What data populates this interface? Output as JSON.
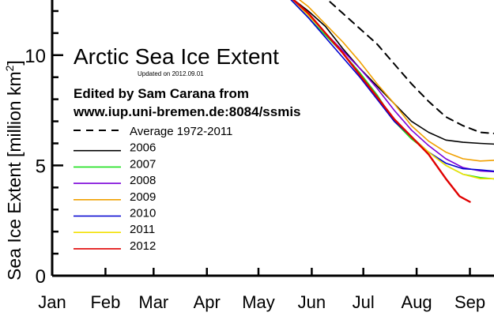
{
  "chart_data": {
    "type": "line",
    "title": "Arctic Sea Ice Extent",
    "updated": "Updated on 2012.09.01",
    "credit_line1": "Edited by Sam Carana from",
    "credit_line2": "www.iup.uni-bremen.de:8084/ssmis",
    "ylabel": "Sea Ice Extent [million km",
    "ylabel_sup": "2",
    "ylabel_close": "]",
    "xlabel": "",
    "months": [
      "Jan",
      "Feb",
      "Mar",
      "Apr",
      "May",
      "Jun",
      "Jul",
      "Aug",
      "Sep"
    ],
    "month_days": [
      1,
      32,
      60,
      91,
      121,
      152,
      182,
      213,
      244
    ],
    "y_ticks": [
      0,
      5,
      10
    ],
    "x_unit": "day of year",
    "xlim": [
      1,
      263
    ],
    "ylim": [
      0,
      12.5
    ],
    "grid": false,
    "legend_position": "left",
    "series": [
      {
        "name": "Average 1972-2011",
        "color": "#000000",
        "dashed": true,
        "points": [
          [
            150,
            13.0
          ],
          [
            160,
            12.6
          ],
          [
            170,
            11.9
          ],
          [
            180,
            11.2
          ],
          [
            190,
            10.5
          ],
          [
            200,
            9.6
          ],
          [
            210,
            8.7
          ],
          [
            220,
            7.9
          ],
          [
            230,
            7.2
          ],
          [
            240,
            6.8
          ],
          [
            250,
            6.5
          ],
          [
            258,
            6.45
          ],
          [
            263,
            6.5
          ]
        ]
      },
      {
        "name": "2006",
        "color": "#000000",
        "dashed": false,
        "points": [
          [
            140,
            12.6
          ],
          [
            150,
            12.0
          ],
          [
            160,
            11.3
          ],
          [
            170,
            10.3
          ],
          [
            180,
            9.4
          ],
          [
            190,
            8.6
          ],
          [
            200,
            7.8
          ],
          [
            210,
            7.0
          ],
          [
            220,
            6.5
          ],
          [
            230,
            6.15
          ],
          [
            240,
            6.05
          ],
          [
            250,
            6.0
          ],
          [
            263,
            5.95
          ]
        ]
      },
      {
        "name": "2007",
        "color": "#1ee01e",
        "dashed": false,
        "points": [
          [
            140,
            12.5
          ],
          [
            150,
            11.7
          ],
          [
            160,
            10.9
          ],
          [
            170,
            10.1
          ],
          [
            180,
            9.2
          ],
          [
            190,
            8.2
          ],
          [
            200,
            7.0
          ],
          [
            210,
            6.2
          ],
          [
            220,
            5.6
          ],
          [
            230,
            5.0
          ],
          [
            240,
            4.6
          ],
          [
            250,
            4.45
          ],
          [
            263,
            4.35
          ]
        ]
      },
      {
        "name": "2008",
        "color": "#7a00d8",
        "dashed": false,
        "points": [
          [
            140,
            12.6
          ],
          [
            150,
            11.8
          ],
          [
            160,
            11.0
          ],
          [
            170,
            10.2
          ],
          [
            180,
            9.4
          ],
          [
            190,
            8.5
          ],
          [
            200,
            7.5
          ],
          [
            210,
            6.6
          ],
          [
            220,
            5.9
          ],
          [
            230,
            5.3
          ],
          [
            240,
            4.9
          ],
          [
            250,
            4.75
          ],
          [
            263,
            4.7
          ]
        ]
      },
      {
        "name": "2009",
        "color": "#f0a000",
        "dashed": false,
        "points": [
          [
            140,
            12.8
          ],
          [
            150,
            12.2
          ],
          [
            160,
            11.4
          ],
          [
            170,
            10.6
          ],
          [
            180,
            9.7
          ],
          [
            190,
            8.7
          ],
          [
            200,
            7.8
          ],
          [
            210,
            6.8
          ],
          [
            220,
            6.1
          ],
          [
            230,
            5.6
          ],
          [
            240,
            5.3
          ],
          [
            250,
            5.2
          ],
          [
            263,
            5.25
          ]
        ]
      },
      {
        "name": "2010",
        "color": "#0000d0",
        "dashed": false,
        "points": [
          [
            140,
            12.5
          ],
          [
            150,
            11.7
          ],
          [
            160,
            10.8
          ],
          [
            170,
            9.9
          ],
          [
            180,
            9.0
          ],
          [
            190,
            8.0
          ],
          [
            200,
            7.0
          ],
          [
            210,
            6.3
          ],
          [
            220,
            5.6
          ],
          [
            230,
            5.1
          ],
          [
            240,
            4.85
          ],
          [
            250,
            4.8
          ],
          [
            263,
            4.7
          ]
        ]
      },
      {
        "name": "2011",
        "color": "#f2e000",
        "dashed": false,
        "points": [
          [
            140,
            12.6
          ],
          [
            150,
            11.8
          ],
          [
            160,
            11.0
          ],
          [
            170,
            10.1
          ],
          [
            180,
            9.1
          ],
          [
            190,
            8.1
          ],
          [
            200,
            7.1
          ],
          [
            210,
            6.3
          ],
          [
            220,
            5.6
          ],
          [
            230,
            5.0
          ],
          [
            240,
            4.6
          ],
          [
            250,
            4.4
          ],
          [
            263,
            4.4
          ]
        ]
      },
      {
        "name": "2012",
        "color": "#e00000",
        "dashed": false,
        "points": [
          [
            140,
            12.6
          ],
          [
            150,
            11.9
          ],
          [
            160,
            11.0
          ],
          [
            170,
            10.1
          ],
          [
            180,
            9.1
          ],
          [
            190,
            8.1
          ],
          [
            200,
            7.1
          ],
          [
            210,
            6.3
          ],
          [
            220,
            5.5
          ],
          [
            230,
            4.4
          ],
          [
            238,
            3.6
          ],
          [
            244,
            3.35
          ]
        ]
      }
    ]
  }
}
